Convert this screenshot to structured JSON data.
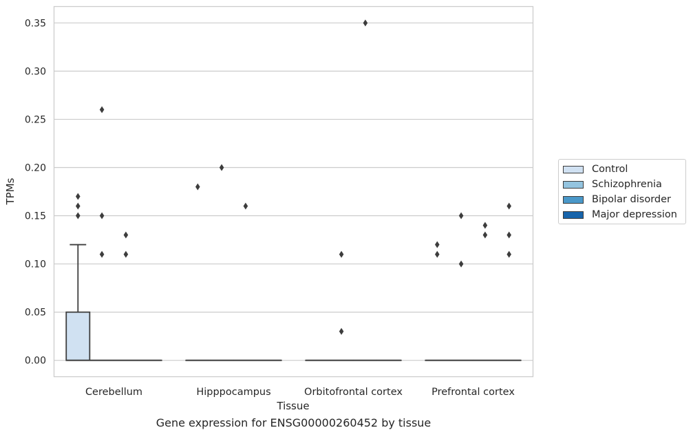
{
  "chart_data": {
    "type": "box",
    "caption": "Gene expression for ENSG00000260452 by tissue",
    "xlabel": "Tissue",
    "ylabel": "TPMs",
    "ylim": [
      -0.017,
      0.367
    ],
    "yticks": [
      0.0,
      0.05,
      0.1,
      0.15,
      0.2,
      0.25,
      0.3,
      0.35
    ],
    "ytick_labels": [
      "0.00",
      "0.05",
      "0.10",
      "0.15",
      "0.20",
      "0.25",
      "0.30",
      "0.35"
    ],
    "categories": [
      "Cerebellum",
      "Hipppocampus",
      "Orbitofrontal cortex",
      "Prefrontal cortex"
    ],
    "grid": "horizontal",
    "legend_position": "right",
    "series": [
      {
        "name": "Control",
        "color": "#d0e1f2",
        "boxes": [
          {
            "q1": 0.0,
            "median": 0.0,
            "q3": 0.05,
            "whisker_low": 0.0,
            "whisker_high": 0.12,
            "outliers": [
              0.15,
              0.16,
              0.17
            ]
          },
          {
            "q1": 0.0,
            "median": 0.0,
            "q3": 0.0,
            "whisker_low": 0.0,
            "whisker_high": 0.0,
            "outliers": [
              0.18
            ]
          },
          {
            "q1": 0.0,
            "median": 0.0,
            "q3": 0.0,
            "whisker_low": 0.0,
            "whisker_high": 0.0,
            "outliers": []
          },
          {
            "q1": 0.0,
            "median": 0.0,
            "q3": 0.0,
            "whisker_low": 0.0,
            "whisker_high": 0.0,
            "outliers": [
              0.11,
              0.12
            ]
          }
        ]
      },
      {
        "name": "Schizophrenia",
        "color": "#94c4df",
        "boxes": [
          {
            "q1": 0.0,
            "median": 0.0,
            "q3": 0.0,
            "whisker_low": 0.0,
            "whisker_high": 0.0,
            "outliers": [
              0.11,
              0.15,
              0.26
            ]
          },
          {
            "q1": 0.0,
            "median": 0.0,
            "q3": 0.0,
            "whisker_low": 0.0,
            "whisker_high": 0.0,
            "outliers": [
              0.2
            ]
          },
          {
            "q1": 0.0,
            "median": 0.0,
            "q3": 0.0,
            "whisker_low": 0.0,
            "whisker_high": 0.0,
            "outliers": [
              0.03,
              0.11
            ]
          },
          {
            "q1": 0.0,
            "median": 0.0,
            "q3": 0.0,
            "whisker_low": 0.0,
            "whisker_high": 0.0,
            "outliers": [
              0.1,
              0.15
            ]
          }
        ]
      },
      {
        "name": "Bipolar disorder",
        "color": "#4a98c9",
        "boxes": [
          {
            "q1": 0.0,
            "median": 0.0,
            "q3": 0.0,
            "whisker_low": 0.0,
            "whisker_high": 0.0,
            "outliers": [
              0.11,
              0.13
            ]
          },
          {
            "q1": 0.0,
            "median": 0.0,
            "q3": 0.0,
            "whisker_low": 0.0,
            "whisker_high": 0.0,
            "outliers": [
              0.16
            ]
          },
          {
            "q1": 0.0,
            "median": 0.0,
            "q3": 0.0,
            "whisker_low": 0.0,
            "whisker_high": 0.0,
            "outliers": [
              0.35
            ]
          },
          {
            "q1": 0.0,
            "median": 0.0,
            "q3": 0.0,
            "whisker_low": 0.0,
            "whisker_high": 0.0,
            "outliers": [
              0.13,
              0.14
            ]
          }
        ]
      },
      {
        "name": "Major depression",
        "color": "#1764ab",
        "boxes": [
          {
            "q1": 0.0,
            "median": 0.0,
            "q3": 0.0,
            "whisker_low": 0.0,
            "whisker_high": 0.0,
            "outliers": []
          },
          {
            "q1": 0.0,
            "median": 0.0,
            "q3": 0.0,
            "whisker_low": 0.0,
            "whisker_high": 0.0,
            "outliers": []
          },
          {
            "q1": 0.0,
            "median": 0.0,
            "q3": 0.0,
            "whisker_low": 0.0,
            "whisker_high": 0.0,
            "outliers": []
          },
          {
            "q1": 0.0,
            "median": 0.0,
            "q3": 0.0,
            "whisker_low": 0.0,
            "whisker_high": 0.0,
            "outliers": [
              0.11,
              0.13,
              0.16
            ]
          }
        ]
      }
    ]
  }
}
